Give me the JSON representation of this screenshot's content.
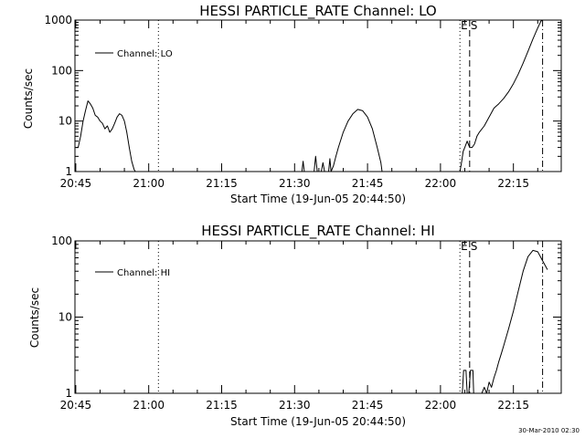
{
  "page": {
    "stamp": "30-Mar-2010 02:30"
  },
  "chart_data": [
    {
      "type": "line",
      "title": "HESSI PARTICLE_RATE Channel: LO",
      "xlabel": "Start Time (19-Jun-05 20:44:50)",
      "ylabel": "Counts/sec",
      "yscale": "log",
      "xlim": [
        "20:44:50",
        "22:24:50"
      ],
      "ylim": [
        1,
        1000
      ],
      "x_ticks": [
        "20:45",
        "21:00",
        "21:15",
        "21:30",
        "21:45",
        "22:00",
        "22:15"
      ],
      "y_ticks": [
        "1",
        "10",
        "100",
        "1000"
      ],
      "legend": {
        "label": "Channel: LO",
        "position": "top-left"
      },
      "markers": [
        {
          "time": "21:02",
          "style": "dotted",
          "label": ""
        },
        {
          "time": "22:04",
          "style": "dotted",
          "label": "E"
        },
        {
          "time": "22:06",
          "style": "dashed",
          "label": "S"
        },
        {
          "time": "22:21",
          "style": "dash-dot",
          "label": ""
        }
      ],
      "series": [
        {
          "name": "Channel: LO",
          "segments": [
            [
              [
                "20:45:00",
                3
              ],
              [
                "20:45:30",
                3
              ],
              [
                "20:46:00",
                5
              ],
              [
                "20:46:30",
                10
              ],
              [
                "20:47:00",
                16
              ],
              [
                "20:47:30",
                25
              ],
              [
                "20:48:00",
                22
              ],
              [
                "20:48:30",
                18
              ],
              [
                "20:49:00",
                13
              ],
              [
                "20:49:30",
                12
              ],
              [
                "20:50:00",
                10
              ],
              [
                "20:50:30",
                9
              ],
              [
                "20:51:00",
                7
              ],
              [
                "20:51:30",
                8
              ],
              [
                "20:52:00",
                6
              ],
              [
                "20:52:30",
                7
              ],
              [
                "20:53:00",
                9
              ],
              [
                "20:53:30",
                12
              ],
              [
                "20:54:00",
                14
              ],
              [
                "20:54:30",
                13
              ],
              [
                "20:55:00",
                10
              ],
              [
                "20:55:30",
                6
              ],
              [
                "20:56:00",
                3
              ],
              [
                "20:56:30",
                1.6
              ],
              [
                "20:57:00",
                1.1
              ],
              [
                "20:57:15",
                1
              ]
            ],
            [
              [
                "21:31:30",
                1
              ],
              [
                "21:31:45",
                1.6
              ],
              [
                "21:32:00",
                1
              ]
            ],
            [
              [
                "21:34:00",
                1
              ],
              [
                "21:34:20",
                2
              ],
              [
                "21:34:40",
                1
              ]
            ],
            [
              [
                "21:35:30",
                1
              ],
              [
                "21:35:50",
                1.5
              ],
              [
                "21:36:10",
                1
              ]
            ],
            [
              [
                "21:37:00",
                1
              ],
              [
                "21:37:15",
                1.8
              ],
              [
                "21:37:30",
                1
              ],
              [
                "21:38:00",
                1.3
              ],
              [
                "21:38:30",
                2
              ],
              [
                "21:39:00",
                3
              ],
              [
                "21:40:00",
                6
              ],
              [
                "21:41:00",
                10
              ],
              [
                "21:42:00",
                14
              ],
              [
                "21:43:00",
                17
              ],
              [
                "21:44:00",
                16
              ],
              [
                "21:45:00",
                12
              ],
              [
                "21:46:00",
                7
              ],
              [
                "21:47:00",
                3
              ],
              [
                "21:47:45",
                1.5
              ],
              [
                "21:48:00",
                1
              ]
            ],
            [
              [
                "22:04:00",
                1
              ],
              [
                "22:04:20",
                1.5
              ],
              [
                "22:04:40",
                2.5
              ],
              [
                "22:05:00",
                3
              ],
              [
                "22:05:30",
                4
              ],
              [
                "22:06:00",
                3
              ],
              [
                "22:06:30",
                3
              ],
              [
                "22:07:00",
                3.5
              ],
              [
                "22:07:30",
                5
              ],
              [
                "22:08:00",
                6
              ],
              [
                "22:09:00",
                8
              ],
              [
                "22:10:00",
                12
              ],
              [
                "22:11:00",
                18
              ],
              [
                "22:12:00",
                22
              ],
              [
                "22:13:00",
                28
              ],
              [
                "22:14:00",
                38
              ],
              [
                "22:15:00",
                55
              ],
              [
                "22:16:00",
                85
              ],
              [
                "22:17:00",
                140
              ],
              [
                "22:18:00",
                240
              ],
              [
                "22:19:00",
                420
              ],
              [
                "22:20:00",
                700
              ],
              [
                "22:20:40",
                950
              ],
              [
                "22:21:00",
                1000
              ]
            ]
          ]
        }
      ]
    },
    {
      "type": "line",
      "title": "HESSI PARTICLE_RATE Channel: HI",
      "xlabel": "Start Time (19-Jun-05 20:44:50)",
      "ylabel": "Counts/sec",
      "yscale": "log",
      "xlim": [
        "20:44:50",
        "22:24:50"
      ],
      "ylim": [
        1,
        100
      ],
      "x_ticks": [
        "20:45",
        "21:00",
        "21:15",
        "21:30",
        "21:45",
        "22:00",
        "22:15"
      ],
      "y_ticks": [
        "1",
        "10",
        "100"
      ],
      "legend": {
        "label": "Channel: HI",
        "position": "top-left"
      },
      "markers": [
        {
          "time": "21:02",
          "style": "dotted",
          "label": ""
        },
        {
          "time": "22:04",
          "style": "dotted",
          "label": "E"
        },
        {
          "time": "22:06",
          "style": "dashed",
          "label": "S"
        },
        {
          "time": "22:21",
          "style": "dash-dot",
          "label": ""
        }
      ],
      "series": [
        {
          "name": "Channel: HI",
          "segments": [
            [
              [
                "22:04:30",
                1
              ],
              [
                "22:04:45",
                2
              ],
              [
                "22:05:15",
                2
              ],
              [
                "22:05:30",
                1
              ],
              [
                "22:05:50",
                1
              ],
              [
                "22:06:10",
                2
              ],
              [
                "22:06:40",
                2
              ],
              [
                "22:06:50",
                1
              ]
            ],
            [
              [
                "22:08:30",
                1
              ],
              [
                "22:09:00",
                1.2
              ],
              [
                "22:09:30",
                1
              ],
              [
                "22:10:00",
                1.4
              ],
              [
                "22:10:30",
                1.2
              ],
              [
                "22:11:00",
                1.6
              ],
              [
                "22:11:30",
                2
              ],
              [
                "22:12:00",
                2.6
              ],
              [
                "22:12:30",
                3.3
              ],
              [
                "22:13:00",
                4.2
              ],
              [
                "22:14:00",
                7
              ],
              [
                "22:15:00",
                12
              ],
              [
                "22:16:00",
                22
              ],
              [
                "22:17:00",
                40
              ],
              [
                "22:18:00",
                62
              ],
              [
                "22:19:00",
                75
              ],
              [
                "22:20:00",
                72
              ],
              [
                "22:21:00",
                55
              ],
              [
                "22:22:00",
                42
              ]
            ]
          ]
        }
      ]
    }
  ]
}
